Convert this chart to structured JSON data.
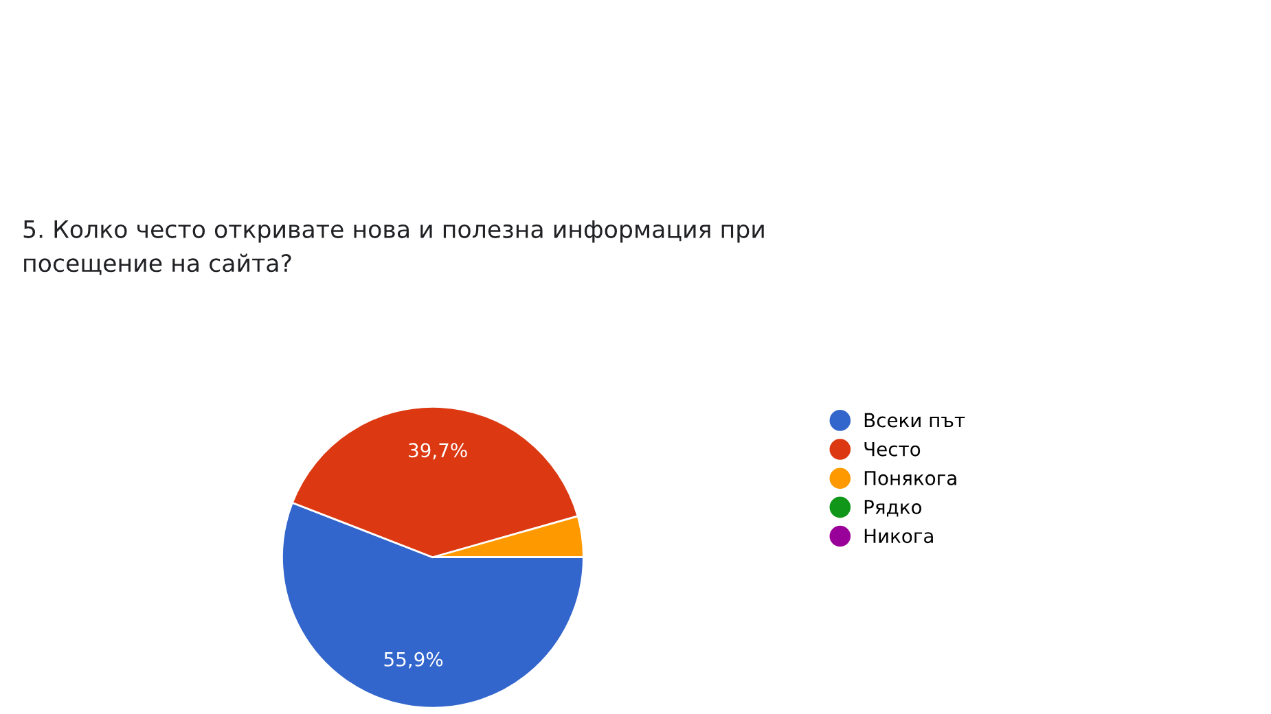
{
  "chart_data": {
    "type": "pie",
    "title": "5. Колко често откривате нова и полезна информация при\nпосещение на сайта?",
    "categories": [
      "Всеки път",
      "Често",
      "Понякога",
      "Рядко",
      "Никога"
    ],
    "values": [
      55.9,
      39.7,
      4.4,
      0,
      0
    ],
    "colors": [
      "#3366cc",
      "#dc3912",
      "#ff9900",
      "#109618",
      "#990099"
    ],
    "value_labels": [
      "55,9%",
      "39,7%",
      null,
      null,
      null
    ],
    "legend": "right"
  }
}
